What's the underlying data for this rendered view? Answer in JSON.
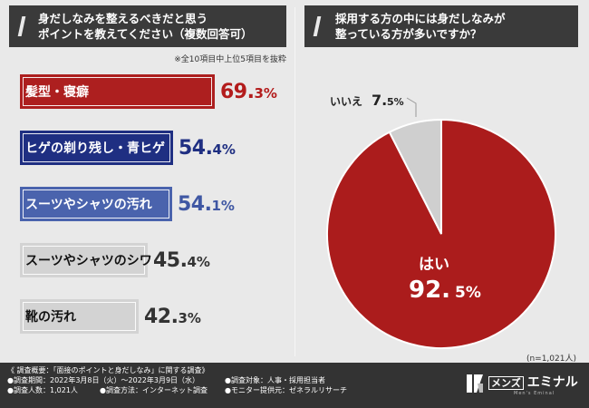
{
  "left": {
    "title_line1": "身だしなみを整えるべきだと思う",
    "title_line2": "ポイントを教えてください（複数回答可）",
    "note": "※全10項目中上位5項目を抜粋"
  },
  "right": {
    "title_line1": "採用する方の中には身だしなみが",
    "title_line2": "整っている方が多いですか？",
    "n_note": "(n=1,021人)"
  },
  "colors": {
    "bar_red": "#ad1f1f",
    "bar_navy": "#1f2f82",
    "bar_blue": "#4a63ad",
    "bar_gray": "#d3d3d3",
    "pie_yes": "#ab1c1c",
    "pie_no": "#cfcfcf",
    "val_red": "#b31c1c",
    "val_navy": "#1f2f82",
    "val_blue": "#3f57a3",
    "val_gray": "#333333"
  },
  "chart_data": [
    {
      "type": "bar",
      "orientation": "horizontal",
      "categories": [
        "髪型・寝癖",
        "ヒゲの剃り残し・青ヒゲ",
        "スーツやシャツの汚れ",
        "スーツやシャツのシワ",
        "靴の汚れ"
      ],
      "values": [
        69.3,
        54.4,
        54.1,
        45.4,
        42.3
      ],
      "value_int": [
        "69.",
        "54.",
        "54.",
        "45.",
        "42."
      ],
      "value_dec": [
        "3%",
        "4%",
        "1%",
        "4%",
        "3%"
      ],
      "bar_colors": [
        "bar_red",
        "bar_navy",
        "bar_blue",
        "bar_gray",
        "bar_gray"
      ],
      "value_colors": [
        "val_red",
        "val_navy",
        "val_blue",
        "val_gray",
        "val_gray"
      ],
      "text_colors": [
        "#ffffff",
        "#ffffff",
        "#ffffff",
        "#111111",
        "#111111"
      ],
      "unit": "%"
    },
    {
      "type": "pie",
      "slices": [
        {
          "label": "はい",
          "value": 92.5,
          "value_int": "92.",
          "value_dec": "5%",
          "color": "pie_yes"
        },
        {
          "label": "いいえ",
          "value": 7.5,
          "value_int": "7.",
          "value_dec": "5%",
          "color": "pie_no"
        }
      ]
    }
  ],
  "footer": {
    "heading": "《 調査概要：「面接のポイントと身だしなみ」に関する調査》",
    "period": "●調査期間：2022年3月8日（火）〜2022年3月9日（水）",
    "count": "●調査人数：1,021人",
    "method": "●調査方法：インターネット調査",
    "target": "●調査対象：人事・採用担当者",
    "provider": "●モニター提供元：ゼネラルリサーチ"
  },
  "logo": {
    "prefix": "メンズ",
    "name": "エミナル",
    "sub": "Men's Eminal"
  }
}
